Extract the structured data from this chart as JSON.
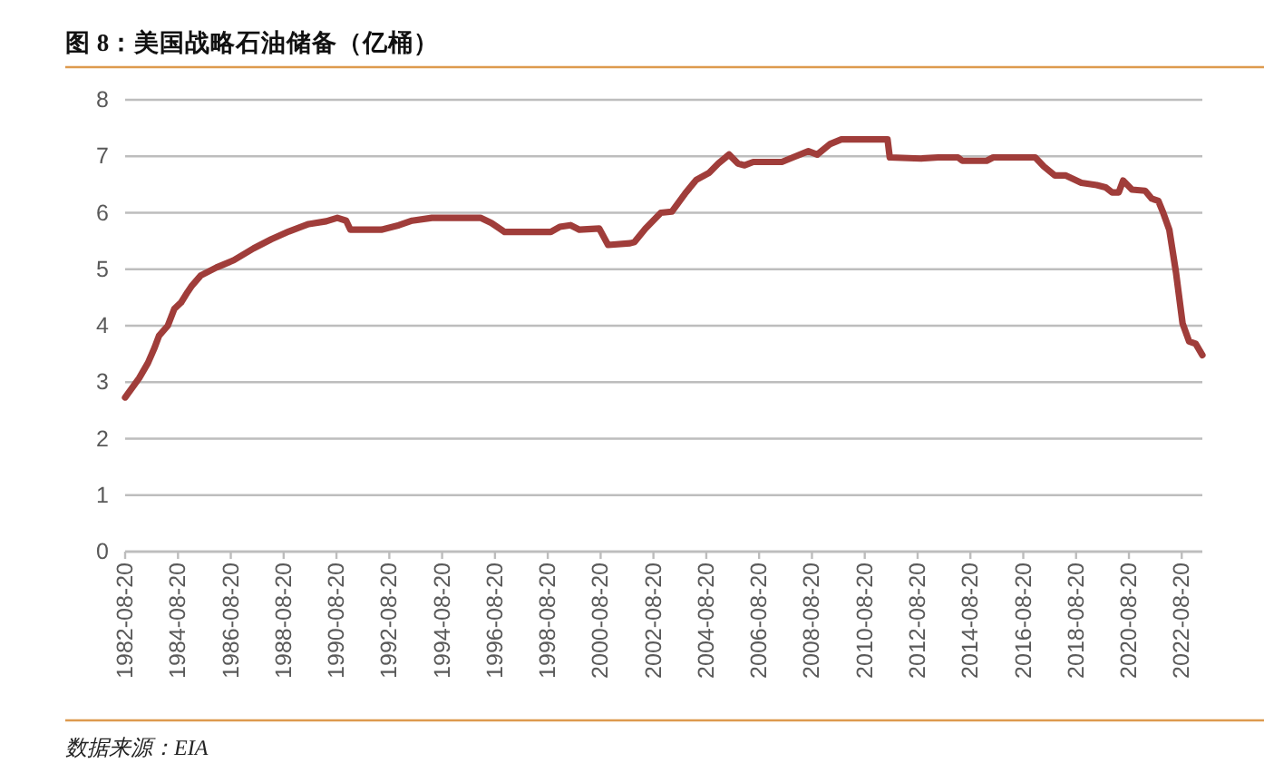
{
  "chart_data": {
    "type": "line",
    "title": "图 8：美国战略石油储备（亿桶）",
    "annotations": [
      "数据来源：EIA"
    ],
    "x": [
      "1982-08-20",
      "1983-03",
      "1983-07",
      "1983-10",
      "1983-12",
      "1984-04",
      "1984-07",
      "1984-10",
      "1985-01",
      "1985-03",
      "1985-07",
      "1986-02",
      "1986-10",
      "1987-07",
      "1988-03",
      "1988-11",
      "1989-08",
      "1990-04",
      "1990-09",
      "1991-01",
      "1991-03",
      "1992-05",
      "1993-01",
      "1993-07",
      "1994-04",
      "1996-02",
      "1996-07",
      "1997-01",
      "1998-10",
      "1999-02",
      "1999-07",
      "1999-11",
      "2000-08",
      "2000-12",
      "2001-10",
      "2001-12",
      "2002-05",
      "2002-12",
      "2003-05",
      "2003-11",
      "2004-04",
      "2004-10",
      "2005-02",
      "2005-07",
      "2005-11",
      "2006-02",
      "2006-06",
      "2007-07",
      "2007-12",
      "2008-07",
      "2008-11",
      "2009-05",
      "2009-10",
      "2011-07",
      "2011-08",
      "2012-10",
      "2013-06",
      "2014-03",
      "2014-05",
      "2015-04",
      "2015-07",
      "2017-02",
      "2017-06",
      "2017-11",
      "2018-04",
      "2018-11",
      "2019-06",
      "2019-10",
      "2020-01",
      "2020-04",
      "2020-06",
      "2020-10",
      "2021-04",
      "2021-07",
      "2021-10",
      "2021-12",
      "2022-03",
      "2022-06",
      "2022-09",
      "2022-12",
      "2023-03",
      "2023-06"
    ],
    "series": [
      {
        "color": "#a03d3a",
        "values": [
          2.73,
          3.07,
          3.34,
          3.61,
          3.82,
          4.0,
          4.3,
          4.41,
          4.6,
          4.71,
          4.89,
          5.03,
          5.16,
          5.37,
          5.53,
          5.67,
          5.8,
          5.85,
          5.91,
          5.86,
          5.7,
          5.7,
          5.78,
          5.86,
          5.91,
          5.91,
          5.82,
          5.66,
          5.66,
          5.75,
          5.78,
          5.7,
          5.72,
          5.43,
          5.46,
          5.48,
          5.72,
          6.0,
          6.02,
          6.34,
          6.58,
          6.71,
          6.87,
          7.03,
          6.87,
          6.84,
          6.9,
          6.9,
          6.98,
          7.09,
          7.03,
          7.22,
          7.3,
          7.3,
          6.98,
          6.96,
          6.98,
          6.98,
          6.92,
          6.92,
          6.98,
          6.98,
          6.82,
          6.66,
          6.66,
          6.53,
          6.49,
          6.45,
          6.36,
          6.36,
          6.57,
          6.41,
          6.39,
          6.25,
          6.21,
          6.02,
          5.7,
          4.95,
          4.04,
          3.72,
          3.68,
          3.48
        ]
      }
    ],
    "xlim": [
      "1982-08-20",
      "2023-06"
    ],
    "xticks": [
      "1982-08-20",
      "1984-08-20",
      "1986-08-20",
      "1988-08-20",
      "1990-08-20",
      "1992-08-20",
      "1994-08-20",
      "1996-08-20",
      "1998-08-20",
      "2000-08-20",
      "2002-08-20",
      "2004-08-20",
      "2006-08-20",
      "2008-08-20",
      "2010-08-20",
      "2012-08-20",
      "2014-08-20",
      "2016-08-20",
      "2018-08-20",
      "2020-08-20",
      "2022-08-20"
    ],
    "ylim": [
      0,
      8
    ],
    "yticks": [
      0,
      1,
      2,
      3,
      4,
      5,
      6,
      7,
      8
    ],
    "grid": "y",
    "line_style": "solid"
  }
}
